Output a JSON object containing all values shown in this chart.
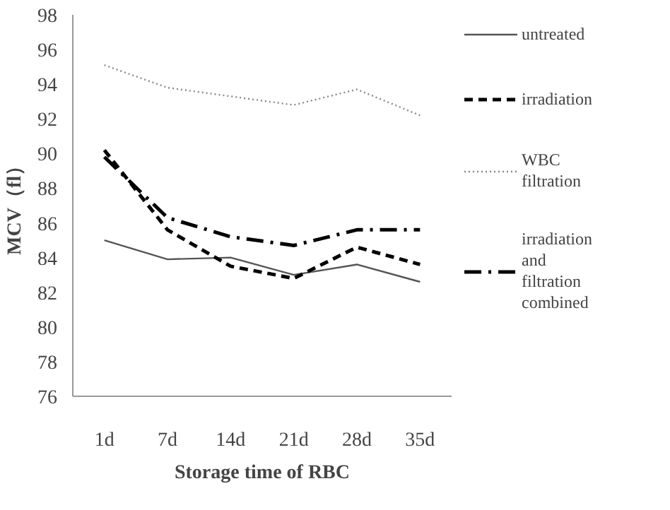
{
  "chart_data": {
    "type": "line",
    "xlabel": "Storage time of RBC",
    "ylabel": "MCV（fl）",
    "categories": [
      "1d",
      "7d",
      "14d",
      "21d",
      "28d",
      "35d"
    ],
    "series": [
      {
        "name": "untreated",
        "color": "#555555",
        "line_style": "solid",
        "values": [
          85.0,
          83.9,
          84.0,
          83.0,
          83.6,
          82.6
        ]
      },
      {
        "name": "irradiation",
        "color": "#000000",
        "line_style": "dashed",
        "values": [
          90.2,
          85.6,
          83.5,
          82.8,
          84.6,
          83.6
        ]
      },
      {
        "name": "WBC filtration",
        "color": "#888888",
        "line_style": "dotted",
        "values": [
          95.1,
          93.8,
          93.3,
          92.8,
          93.7,
          92.2
        ]
      },
      {
        "name": "irradiation and filtration combined",
        "color": "#000000",
        "line_style": "dashdot",
        "values": [
          89.8,
          86.3,
          85.2,
          84.7,
          85.6,
          85.6
        ]
      }
    ],
    "ylim": [
      76,
      98
    ],
    "yticks": [
      76,
      78,
      80,
      82,
      84,
      86,
      88,
      90,
      92,
      94,
      96,
      98
    ],
    "grid": false,
    "legend": "right"
  }
}
